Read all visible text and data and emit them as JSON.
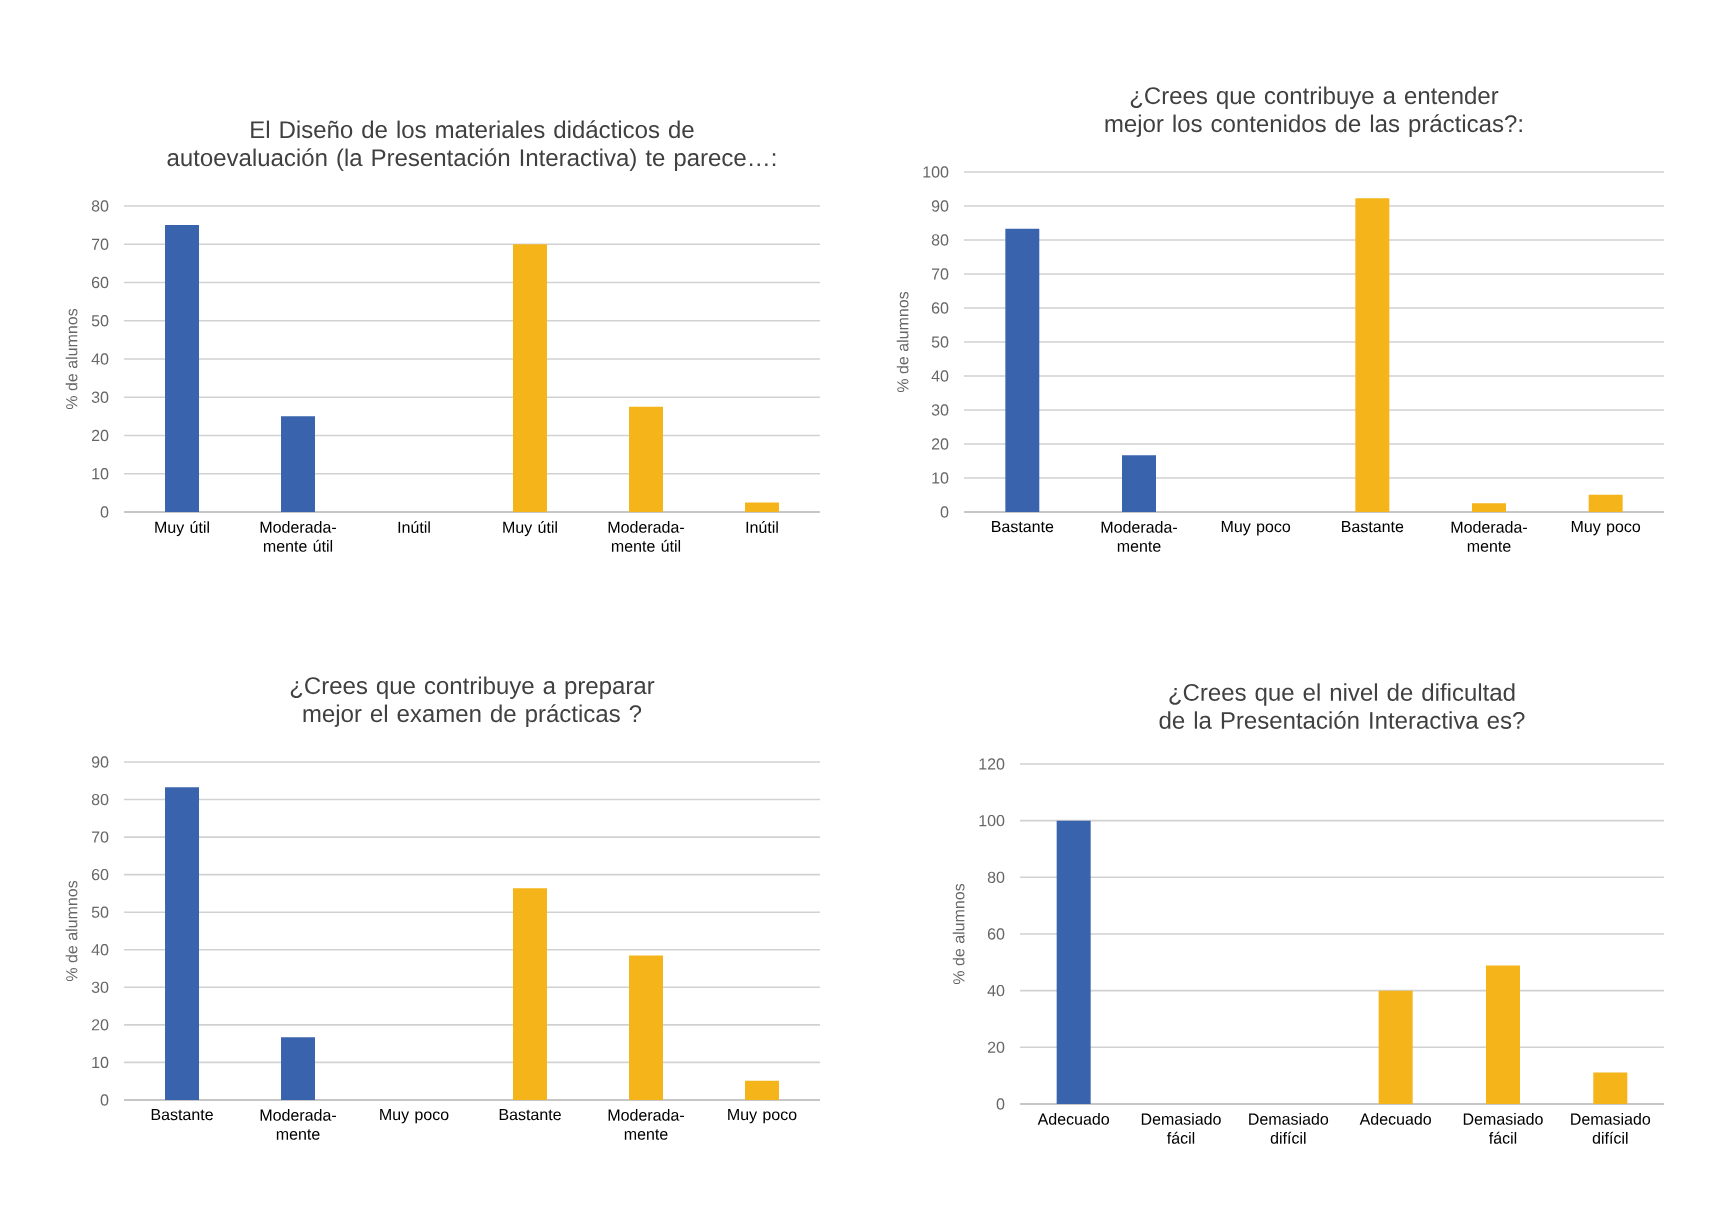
{
  "chart_data": [
    {
      "type": "bar",
      "title": "El Diseño de los materiales didácticos de autoevaluación (la Presentación Interactiva) te parece…:",
      "ylabel": "% de alumnos",
      "categories": [
        "Muy útil",
        "Moderada-mente útil",
        "Inútil",
        "Muy útil",
        "Moderada-mente útil",
        "Inútil"
      ],
      "values": [
        75,
        25,
        0,
        70,
        27.5,
        2.5
      ],
      "colors": [
        "#3a63ad",
        "#3a63ad",
        "#3a63ad",
        "#f4b41a",
        "#f4b41a",
        "#f4b41a"
      ],
      "ylim": [
        0,
        80
      ],
      "yticks": [
        0,
        10,
        20,
        30,
        40,
        50,
        60,
        70,
        80
      ],
      "grid": "y"
    },
    {
      "type": "bar",
      "title": "¿Crees que contribuye a entender mejor los contenidos de las prácticas?:",
      "ylabel": "% de alumnos",
      "categories": [
        "Bastante",
        "Moderada-mente",
        "Muy poco",
        "Bastante",
        "Moderada-mente",
        "Muy poco"
      ],
      "values": [
        83.3,
        16.7,
        0,
        92.3,
        2.6,
        5.1
      ],
      "colors": [
        "#3a63ad",
        "#3a63ad",
        "#3a63ad",
        "#f4b41a",
        "#f4b41a",
        "#f4b41a"
      ],
      "ylim": [
        0,
        100
      ],
      "yticks": [
        0,
        10,
        20,
        30,
        40,
        50,
        60,
        70,
        80,
        90,
        100
      ],
      "grid": "y"
    },
    {
      "type": "bar",
      "title": "¿Crees que contribuye a preparar mejor el examen de prácticas ?",
      "ylabel": "% de alumnos",
      "categories": [
        "Bastante",
        "Moderada-mente",
        "Muy poco",
        "Bastante",
        "Moderada-mente",
        "Muy poco"
      ],
      "values": [
        83.3,
        16.7,
        0,
        56.4,
        38.5,
        5.1
      ],
      "colors": [
        "#3a63ad",
        "#3a63ad",
        "#3a63ad",
        "#f4b41a",
        "#f4b41a",
        "#f4b41a"
      ],
      "ylim": [
        0,
        90
      ],
      "yticks": [
        0,
        10,
        20,
        30,
        40,
        50,
        60,
        70,
        80,
        90
      ],
      "grid": "y"
    },
    {
      "type": "bar",
      "title": "¿Crees que el nivel de dificultad de la Presentación Interactiva es?",
      "ylabel": "% de alumnos",
      "categories": [
        "Adecuado",
        "Demasiado fácil",
        "Demasiado difícil",
        "Adecuado",
        "Demasiado fácil",
        "Demasiado difícil"
      ],
      "values": [
        100,
        0,
        0,
        40,
        48.9,
        11.1
      ],
      "colors": [
        "#3a63ad",
        "#3a63ad",
        "#3a63ad",
        "#f4b41a",
        "#f4b41a",
        "#f4b41a"
      ],
      "ylim": [
        0,
        120
      ],
      "yticks": [
        0,
        20,
        40,
        60,
        80,
        100,
        120
      ],
      "grid": "y"
    }
  ]
}
